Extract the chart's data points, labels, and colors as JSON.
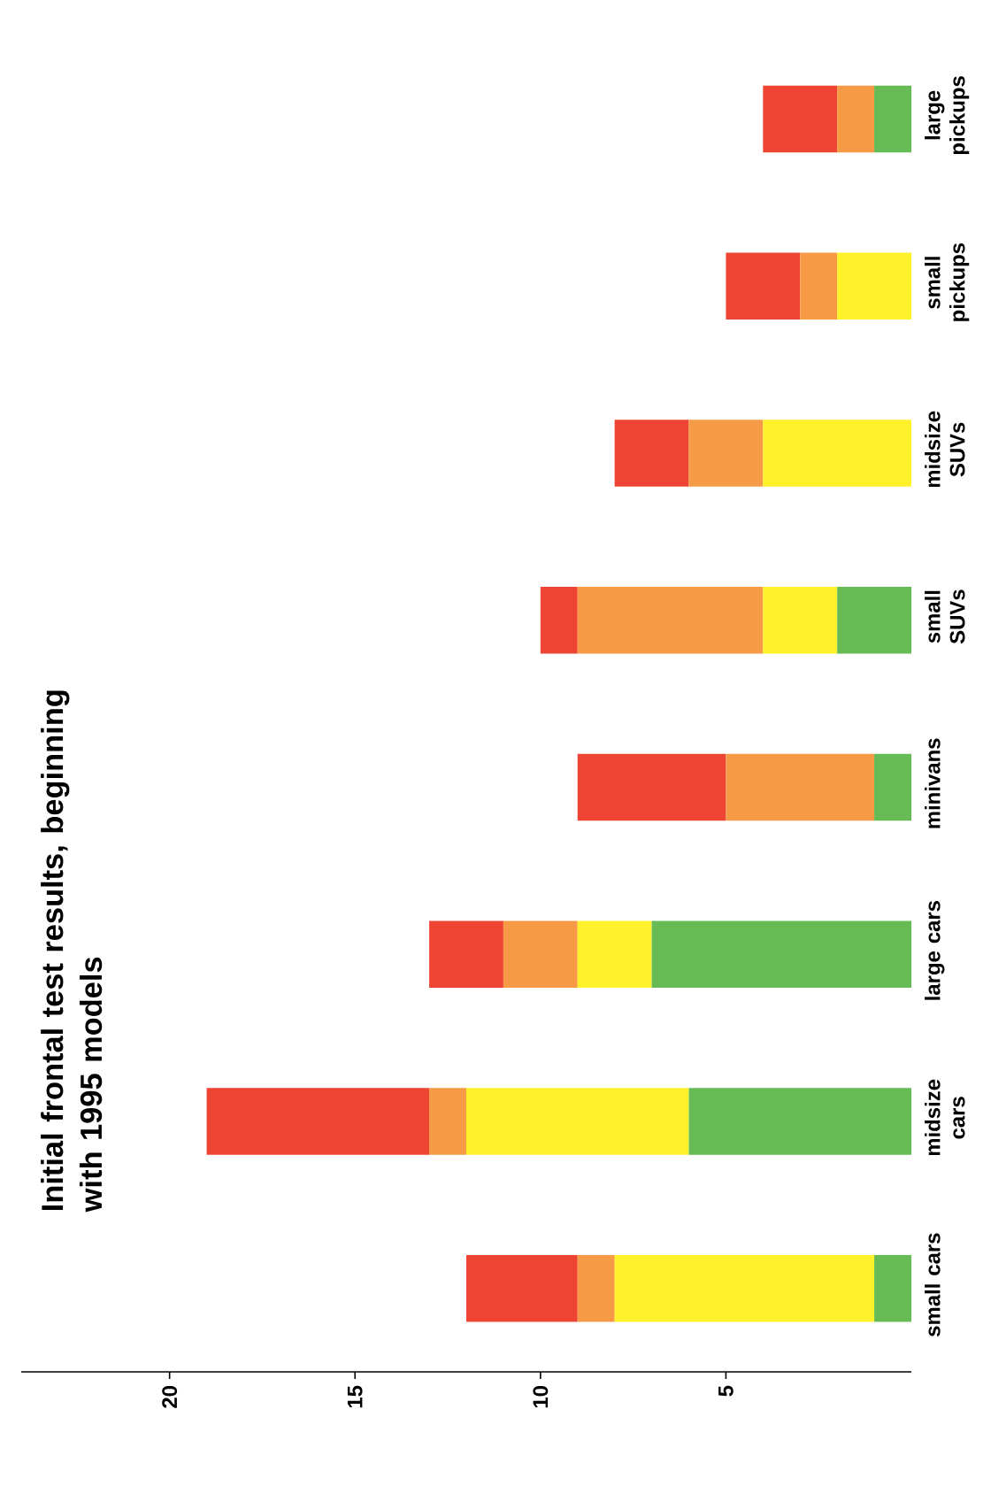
{
  "chart_data": {
    "type": "bar",
    "stacked": true,
    "orientation": "horizontal",
    "title": "Initial frontal test results, beginning with 1995 models",
    "categories": [
      "large pickups",
      "small pickups",
      "midsize SUVs",
      "small SUVs",
      "minivans",
      "large cars",
      "midsize cars",
      "small cars"
    ],
    "series": [
      {
        "color": "#66bb55",
        "values": [
          1,
          0,
          0,
          2,
          1,
          7,
          6,
          1
        ]
      },
      {
        "color": "#fff12a",
        "values": [
          0,
          2,
          4,
          2,
          0,
          2,
          6,
          7
        ]
      },
      {
        "color": "#f79a45",
        "values": [
          1,
          1,
          2,
          5,
          4,
          2,
          1,
          1
        ]
      },
      {
        "color": "#ee4433",
        "values": [
          2,
          2,
          2,
          1,
          4,
          2,
          6,
          3
        ]
      }
    ],
    "xlim": [
      24,
      0
    ],
    "xticks": [
      5,
      10,
      15,
      20
    ]
  }
}
